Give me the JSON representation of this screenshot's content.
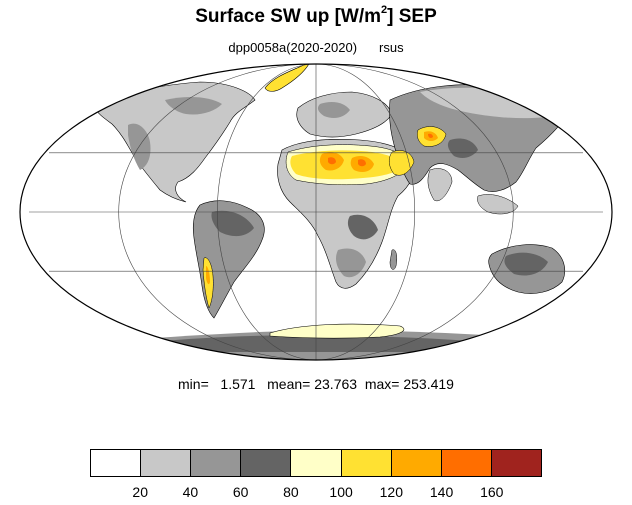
{
  "title": {
    "prefix": "Surface SW up [W/m",
    "sup": "2",
    "suffix": "]  SEP"
  },
  "subtitle": {
    "experiment": "dpp0058a(2020-2020)",
    "variable": "rsus"
  },
  "stats": {
    "min_label": "min=",
    "min_value": "1.571",
    "mean_label": "mean=",
    "mean_value": "23.763",
    "max_label": "max=",
    "max_value": "253.419"
  },
  "colorbar": {
    "colors": [
      "#ffffff",
      "#c8c8c8",
      "#969696",
      "#646464",
      "#ffffc8",
      "#ffe132",
      "#ffaa00",
      "#ff6e00",
      "#a0231e"
    ],
    "tick_labels": [
      "20",
      "40",
      "60",
      "80",
      "100",
      "120",
      "140",
      "160"
    ]
  },
  "map_colors": {
    "ocean": "#ffffff",
    "land_low": "#c8c8c8",
    "land_mid": "#969696",
    "land_dark": "#646464",
    "bright_light": "#ffffc8",
    "bright_yellow": "#ffe132",
    "bright_orange": "#ffaa00",
    "bright_deep": "#ff6e00",
    "bright_max": "#a0231e"
  }
}
